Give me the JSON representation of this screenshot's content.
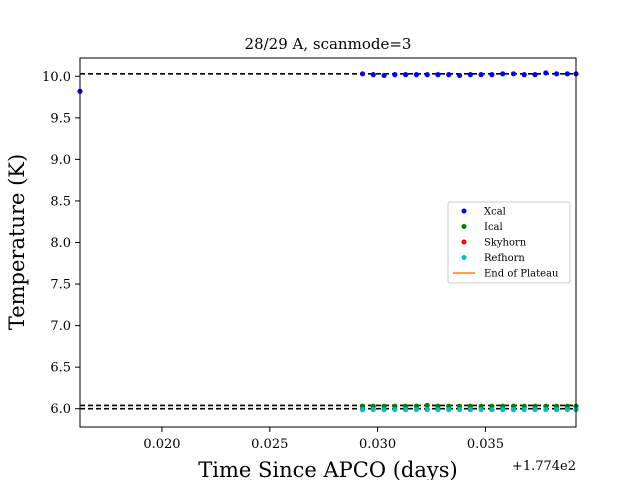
{
  "chart_data": {
    "type": "scatter",
    "title": "28/29 A, scanmode=3",
    "xlabel": "Time Since APCO (days)",
    "ylabel": "Temperature (K)",
    "x_offset_label": "+1.774e2",
    "xlim": [
      0.0162,
      0.0392
    ],
    "ylim": [
      5.78,
      10.22
    ],
    "x_ticks": [
      0.02,
      0.025,
      0.03,
      0.035
    ],
    "x_tick_labels": [
      "0.020",
      "0.025",
      "0.030",
      "0.035"
    ],
    "y_ticks": [
      6.0,
      6.5,
      7.0,
      7.5,
      8.0,
      8.5,
      9.0,
      9.5,
      10.0
    ],
    "y_tick_labels": [
      "6.0",
      "6.5",
      "7.0",
      "7.5",
      "8.0",
      "8.5",
      "9.0",
      "9.5",
      "10.0"
    ],
    "grid": false,
    "legend_position": "center-right",
    "series": [
      {
        "name": "Xcal",
        "color": "#0000ff",
        "points": [
          [
            0.0162,
            9.82
          ],
          [
            0.0293,
            10.03
          ],
          [
            0.0298,
            10.02
          ],
          [
            0.0303,
            10.01
          ],
          [
            0.0308,
            10.02
          ],
          [
            0.0313,
            10.02
          ],
          [
            0.0318,
            10.02
          ],
          [
            0.0323,
            10.02
          ],
          [
            0.0328,
            10.02
          ],
          [
            0.0333,
            10.02
          ],
          [
            0.0338,
            10.01
          ],
          [
            0.0343,
            10.02
          ],
          [
            0.0348,
            10.02
          ],
          [
            0.0353,
            10.02
          ],
          [
            0.0358,
            10.03
          ],
          [
            0.0363,
            10.03
          ],
          [
            0.0368,
            10.02
          ],
          [
            0.0373,
            10.02
          ],
          [
            0.0378,
            10.04
          ],
          [
            0.0383,
            10.03
          ],
          [
            0.0388,
            10.03
          ],
          [
            0.0392,
            10.03
          ]
        ]
      },
      {
        "name": "Ical",
        "color": "#008000",
        "points": [
          [
            0.0293,
            6.03
          ],
          [
            0.0298,
            6.03
          ],
          [
            0.0303,
            6.03
          ],
          [
            0.0308,
            6.03
          ],
          [
            0.0313,
            6.03
          ],
          [
            0.0318,
            6.03
          ],
          [
            0.0323,
            6.04
          ],
          [
            0.0328,
            6.03
          ],
          [
            0.0333,
            6.03
          ],
          [
            0.0338,
            6.03
          ],
          [
            0.0343,
            6.03
          ],
          [
            0.0348,
            6.03
          ],
          [
            0.0353,
            6.03
          ],
          [
            0.0358,
            6.03
          ],
          [
            0.0363,
            6.03
          ],
          [
            0.0368,
            6.03
          ],
          [
            0.0373,
            6.03
          ],
          [
            0.0378,
            6.03
          ],
          [
            0.0383,
            6.03
          ],
          [
            0.0388,
            6.03
          ],
          [
            0.0392,
            6.03
          ]
        ]
      },
      {
        "name": "Skyhorn",
        "color": "#ff0000",
        "points": [
          [
            0.0293,
            5.99
          ],
          [
            0.0303,
            5.99
          ],
          [
            0.0313,
            5.99
          ],
          [
            0.0323,
            5.99
          ],
          [
            0.0333,
            5.99
          ],
          [
            0.0343,
            5.99
          ],
          [
            0.0353,
            5.99
          ],
          [
            0.0363,
            5.99
          ],
          [
            0.0373,
            5.99
          ],
          [
            0.0383,
            5.99
          ]
        ]
      },
      {
        "name": "Refhorn",
        "color": "#00bfbf",
        "points": [
          [
            0.0293,
            5.99
          ],
          [
            0.0298,
            5.99
          ],
          [
            0.0303,
            5.99
          ],
          [
            0.0308,
            5.99
          ],
          [
            0.0313,
            5.99
          ],
          [
            0.0318,
            5.99
          ],
          [
            0.0323,
            5.99
          ],
          [
            0.0328,
            5.99
          ],
          [
            0.0333,
            5.99
          ],
          [
            0.0338,
            5.99
          ],
          [
            0.0343,
            5.99
          ],
          [
            0.0348,
            5.99
          ],
          [
            0.0353,
            5.99
          ],
          [
            0.0358,
            5.99
          ],
          [
            0.0363,
            5.99
          ],
          [
            0.0368,
            5.99
          ],
          [
            0.0373,
            5.99
          ],
          [
            0.0378,
            5.99
          ],
          [
            0.0383,
            5.99
          ],
          [
            0.0388,
            5.99
          ],
          [
            0.0392,
            5.99
          ]
        ]
      },
      {
        "name": "End of Plateau",
        "color": "#ff7f0e",
        "line": true,
        "points": []
      }
    ],
    "reference_lines": [
      {
        "y": 10.03,
        "color": "#000000",
        "style": "dashed"
      },
      {
        "y": 6.04,
        "color": "#000000",
        "style": "dashed"
      },
      {
        "y": 6.0,
        "color": "#000000",
        "style": "dashed"
      }
    ]
  }
}
